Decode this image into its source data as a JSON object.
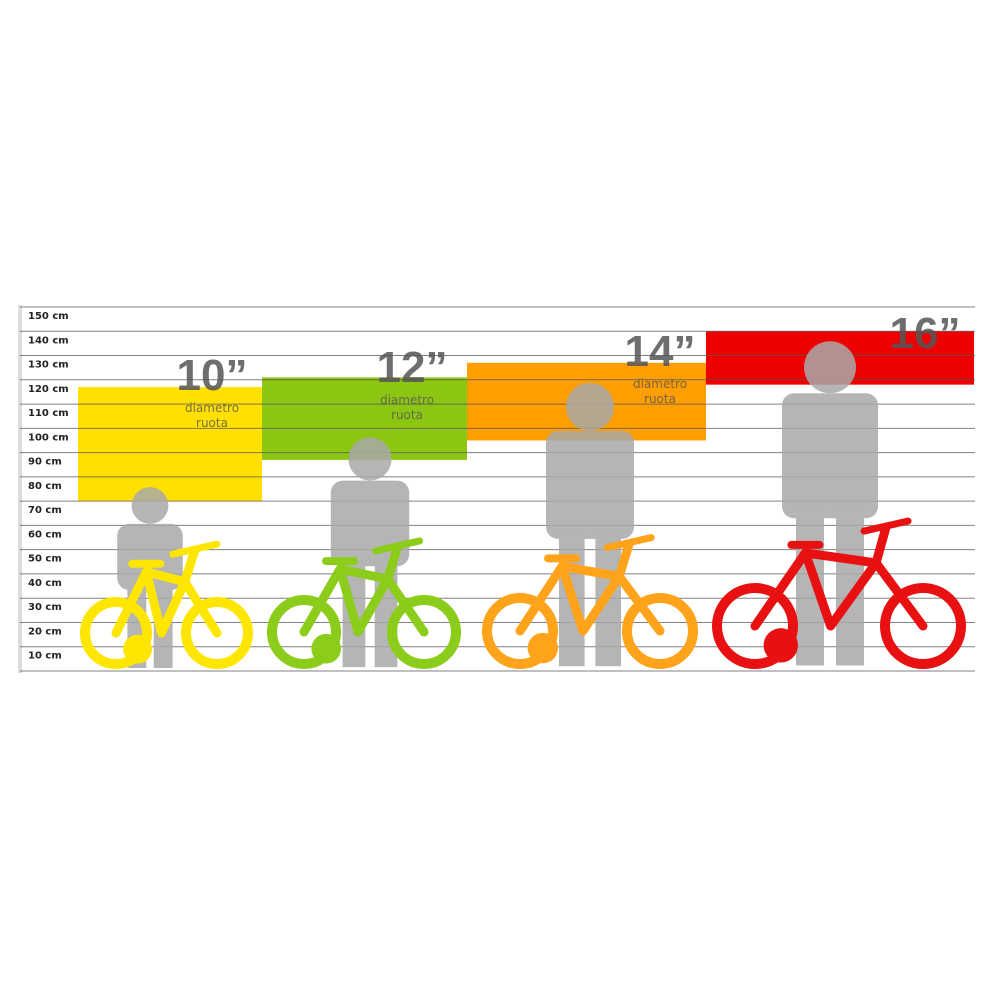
{
  "chart_data": {
    "type": "bar",
    "subtype": "floating-range",
    "y_unit": "cm",
    "ylim": [
      0,
      150
    ],
    "y_ticks": [
      "10 cm",
      "20 cm",
      "30 cm",
      "40 cm",
      "50 cm",
      "60 cm",
      "70 cm",
      "80 cm",
      "90 cm",
      "100 cm",
      "110 cm",
      "120 cm",
      "130 cm",
      "140 cm",
      "150 cm"
    ],
    "grid": true,
    "categories": [
      "10”",
      "12”",
      "14”",
      "16”"
    ],
    "caption": "diametro ruota",
    "caption_lines": [
      "diametro",
      "ruota"
    ],
    "ranges": [
      {
        "label": "10”",
        "low": 70,
        "high": 117,
        "color": "#ffe000",
        "bike_color": "#ffe600"
      },
      {
        "label": "12”",
        "low": 87,
        "high": 121,
        "color": "#8cc612",
        "bike_color": "#8ccc1a"
      },
      {
        "label": "14”",
        "low": 95,
        "high": 127,
        "color": "#ff9e00",
        "bike_color": "#ffa31a"
      },
      {
        "label": "16”",
        "low": 118,
        "high": 140,
        "color": "#ee0000",
        "bike_color": "#e81010"
      }
    ],
    "silhouette_color": "#a9a9a9"
  }
}
